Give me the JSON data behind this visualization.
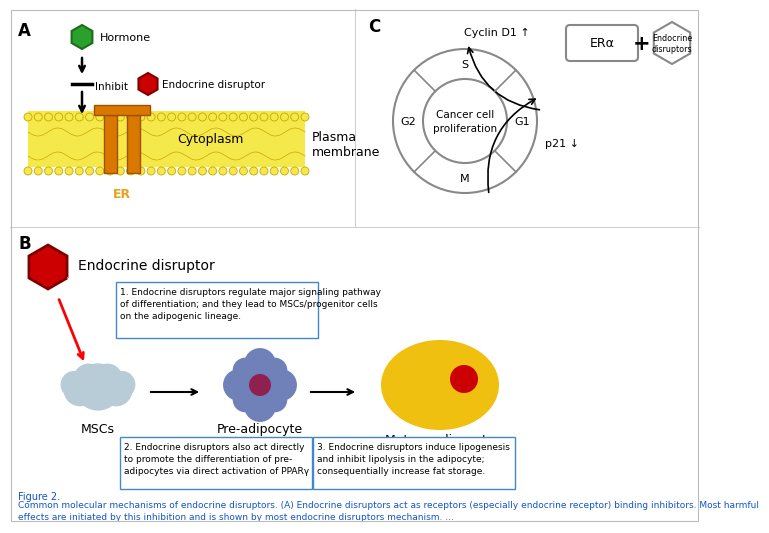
{
  "panel_A_label": "A",
  "panel_B_label": "B",
  "panel_C_label": "C",
  "hormone_label": "Hormone",
  "er_disruptor_label": "Endocrine disruptor",
  "inhibit_label": "Inhibit",
  "er_label": "ER",
  "er_color": "#e8a020",
  "cytoplasm_label": "Cytoplasm",
  "plasma_membrane_label": "Plasma\nmembrane",
  "cycle_center_text": "Cancer cell\nproliferation",
  "cyclin_label": "Cyclin D1 ↑",
  "p21_label": "p21 ↓",
  "era_label": "ERα",
  "plus_label": "+",
  "end_dis_label": "Endocrine\ndisruptors",
  "msc_label": "MSCs",
  "preadipocyte_label": "Pre-adipocyte",
  "mature_label": "Mature adipocyte",
  "msc_color": "#b8ccd8",
  "preadipocyte_color": "#7080b8",
  "mature_color": "#f0c010",
  "nucleus_color_pre": "#902050",
  "nucleus_color_mature": "#cc0000",
  "box1_text": "1. Endocrine disruptors regulate major signaling pathway\nof differentiation; and they lead to MSCs/progenitor cells\non the adipogenic lineage.",
  "box2_text": "2. Endocrine disruptors also act directly\nto promote the differentiation of pre-\nadipocytes via direct activation of PPARγ",
  "box3_text": "3. Endocrine disruptors induce lipogenesis\nand inhibit lipolysis in the adipocyte;\nconsequentially increase fat storage.",
  "caption_title": "Figure 2.",
  "caption_text": "Common molecular mechanisms of endocrine disruptors. (A) Endocrine disruptors act as receptors (especially endocrine receptor) binding inhibitors. Most harmful\neffects are initiated by this inhibition and is shown by most endocrine disruptors mechanism. ...",
  "bg_color": "#ffffff"
}
